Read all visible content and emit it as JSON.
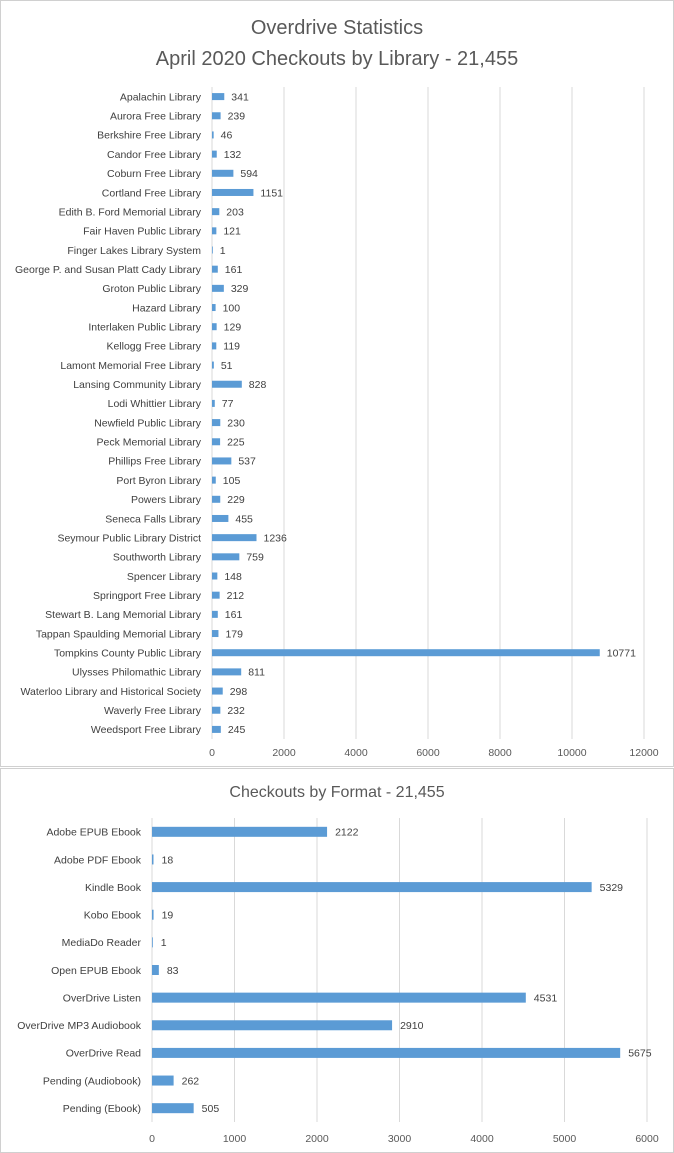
{
  "chart_data": [
    {
      "type": "bar",
      "orientation": "horizontal",
      "title": "Overdrive Statistics",
      "subtitle": "April 2020 Checkouts by Library - 21,455",
      "categories": [
        "Apalachin Library",
        "Aurora Free Library",
        "Berkshire Free Library",
        "Candor Free Library",
        "Coburn Free Library",
        "Cortland Free Library",
        "Edith B. Ford Memorial Library",
        "Fair Haven Public Library",
        "Finger Lakes Library System",
        "George P. and Susan Platt Cady Library",
        "Groton Public Library",
        "Hazard Library",
        "Interlaken Public Library",
        "Kellogg Free Library",
        "Lamont Memorial Free Library",
        "Lansing Community Library",
        "Lodi Whittier Library",
        "Newfield Public Library",
        "Peck Memorial Library",
        "Phillips Free Library",
        "Port Byron Library",
        "Powers Library",
        "Seneca Falls Library",
        "Seymour Public Library District",
        "Southworth Library",
        "Spencer Library",
        "Springport Free Library",
        "Stewart B. Lang Memorial Library",
        "Tappan Spaulding Memorial Library",
        "Tompkins County Public Library",
        "Ulysses Philomathic Library",
        "Waterloo Library and Historical Society",
        "Waverly Free Library",
        "Weedsport Free Library"
      ],
      "values": [
        341,
        239,
        46,
        132,
        594,
        1151,
        203,
        121,
        1,
        161,
        329,
        100,
        129,
        119,
        51,
        828,
        77,
        230,
        225,
        537,
        105,
        229,
        455,
        1236,
        759,
        148,
        212,
        161,
        179,
        10771,
        811,
        298,
        232,
        245
      ],
      "xlim": [
        0,
        12000
      ],
      "xticks": [
        0,
        2000,
        4000,
        6000,
        8000,
        10000,
        12000
      ],
      "xlabel": "",
      "ylabel": "",
      "grid": "vertical",
      "legend": "none",
      "bar_color": "#5b9bd5"
    },
    {
      "type": "bar",
      "orientation": "horizontal",
      "title": "Checkouts by Format - 21,455",
      "categories": [
        "Adobe EPUB Ebook",
        "Adobe PDF Ebook",
        "Kindle Book",
        "Kobo Ebook",
        "MediaDo Reader",
        "Open EPUB Ebook",
        "OverDrive Listen",
        "OverDrive MP3 Audiobook",
        "OverDrive Read",
        "Pending (Audiobook)",
        "Pending (Ebook)"
      ],
      "values": [
        2122,
        18,
        5329,
        19,
        1,
        83,
        4531,
        2910,
        5675,
        262,
        505
      ],
      "xlim": [
        0,
        6000
      ],
      "xticks": [
        0,
        1000,
        2000,
        3000,
        4000,
        5000,
        6000
      ],
      "xlabel": "",
      "ylabel": "",
      "grid": "vertical",
      "legend": "none",
      "bar_color": "#5b9bd5"
    }
  ]
}
